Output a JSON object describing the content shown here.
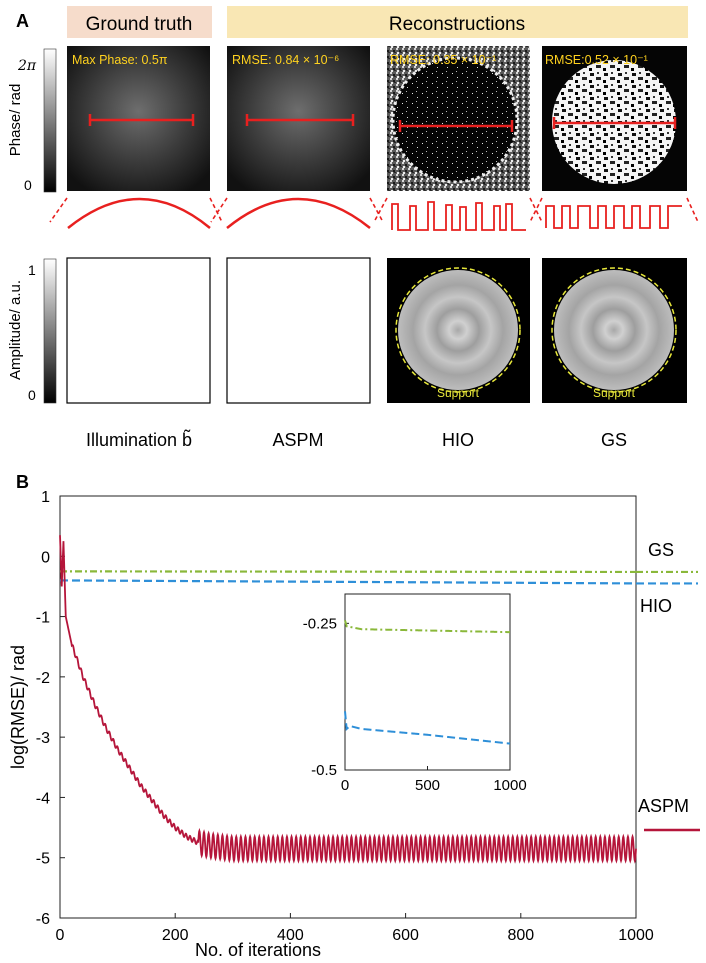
{
  "panel_a": {
    "label": "A",
    "header_ground_truth": "Ground truth",
    "header_reconstructions": "Reconstructions",
    "phase_colorbar": {
      "label": "Phase/ rad",
      "max_tick": "2π",
      "min_tick": "0"
    },
    "amplitude_colorbar": {
      "label": "Amplitude/ a.u.",
      "max_tick": "1",
      "min_tick": "0"
    },
    "phase_tiles": [
      {
        "annotation": "Max Phase: 0.5π"
      },
      {
        "annotation": "RMSE: 0.84 × 10⁻⁶"
      },
      {
        "annotation": "RMSE: 0.35 × 10⁻¹"
      },
      {
        "annotation": "RMSE:0.52 × 10⁻¹"
      }
    ],
    "amplitude_tiles": [
      {
        "annotation": ""
      },
      {
        "annotation": ""
      },
      {
        "annotation": "Support"
      },
      {
        "annotation": "Support"
      }
    ],
    "column_labels": [
      "Illumination b̃",
      "ASPM",
      "HIO",
      "GS"
    ],
    "colors": {
      "header_ground_truth_bg": "#f6dccb",
      "header_reconstructions_bg": "#f9e7b4",
      "annotation_text": "#ffd21f",
      "profile_line": "#e8201f",
      "support_circle": "#e8e83a"
    }
  },
  "chart_data": {
    "panel_label": "B",
    "type": "line",
    "xlabel": "No. of iterations",
    "ylabel": "log(RMSE)/ rad",
    "xlim": [
      0,
      1000
    ],
    "ylim": [
      -6,
      1
    ],
    "x_ticks": [
      0,
      200,
      400,
      600,
      800,
      1000
    ],
    "y_ticks": [
      1,
      0,
      -1,
      -2,
      -3,
      -4,
      -5,
      -6
    ],
    "grid": false,
    "series": [
      {
        "name": "GS",
        "color": "#8ab83a",
        "style": "dash-dot",
        "start": -0.25,
        "end": -0.26
      },
      {
        "name": "HIO",
        "color": "#2e8fd8",
        "style": "dashed",
        "start": -0.4,
        "end": -0.45
      },
      {
        "name": "ASPM",
        "color": "#b5153a",
        "style": "solid",
        "x": [
          0,
          3,
          6,
          10,
          20,
          40,
          60,
          80,
          100,
          120,
          140,
          160,
          180,
          200,
          220,
          240,
          260,
          300,
          400,
          600,
          800,
          1000
        ],
        "y": [
          0.35,
          -0.5,
          0.25,
          -1.0,
          -1.45,
          -2.0,
          -2.45,
          -2.85,
          -3.2,
          -3.5,
          -3.8,
          -4.05,
          -4.3,
          -4.5,
          -4.65,
          -4.75,
          -4.8,
          -4.85,
          -4.85,
          -4.85,
          -4.85,
          -4.85
        ],
        "oscillation_amplitude": 0.2,
        "oscillation_start": 240
      }
    ],
    "inset": {
      "xlim": [
        0,
        1000
      ],
      "ylim": [
        -0.5,
        -0.2
      ],
      "x_ticks": [
        0,
        500,
        1000
      ],
      "y_ticks": [
        -0.25,
        -0.5
      ],
      "series": [
        {
          "name": "GS",
          "x": [
            0,
            10,
            100,
            1000
          ],
          "y": [
            -0.245,
            -0.255,
            -0.26,
            -0.265
          ]
        },
        {
          "name": "HIO",
          "x": [
            0,
            10,
            30,
            100,
            500,
            1000
          ],
          "y": [
            -0.4,
            -0.43,
            -0.425,
            -0.43,
            -0.44,
            -0.455
          ]
        }
      ]
    }
  }
}
